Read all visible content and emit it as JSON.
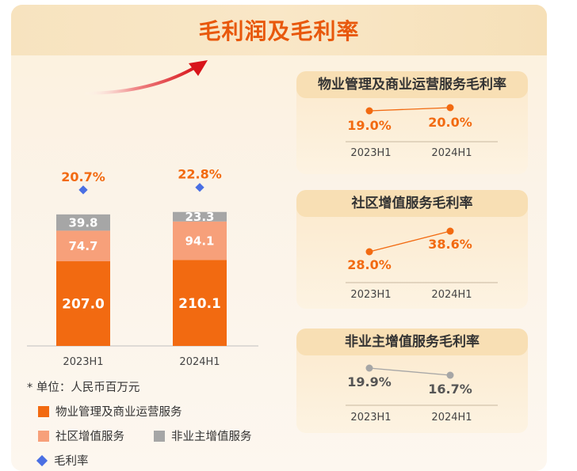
{
  "title": "毛利润及毛利率",
  "chart_data": [
    {
      "type": "bar",
      "stacked": true,
      "categories": [
        "2023H1",
        "2024H1"
      ],
      "series": [
        {
          "name": "物业管理及商业运营服务",
          "values": [
            207.0,
            210.1
          ],
          "color": "#f26a11"
        },
        {
          "name": "社区增值服务",
          "values": [
            74.7,
            94.1
          ],
          "color": "#f7a07a"
        },
        {
          "name": "非业主增值服务",
          "values": [
            39.8,
            23.3
          ],
          "color": "#a6a6a6"
        }
      ],
      "value_labels": [
        [
          "207.0",
          "210.1"
        ],
        [
          "74.7",
          "94.1"
        ],
        [
          "39.8",
          "23.3"
        ]
      ],
      "line": {
        "name": "毛利率",
        "values": [
          20.7,
          22.8
        ],
        "labels": [
          "20.7%",
          "22.8%"
        ],
        "color": "#4a6fe3"
      },
      "unit": "* 单位：人民币百万元"
    },
    {
      "type": "line",
      "title": "物业管理及商业运营服务毛利率",
      "categories": [
        "2023H1",
        "2024H1"
      ],
      "values": [
        19.0,
        20.0
      ],
      "labels": [
        "19.0%",
        "20.0%"
      ],
      "color": "#f26a11"
    },
    {
      "type": "line",
      "title": "社区增值服务毛利率",
      "categories": [
        "2023H1",
        "2024H1"
      ],
      "values": [
        28.0,
        38.6
      ],
      "labels": [
        "28.0%",
        "38.6%"
      ],
      "color": "#f26a11"
    },
    {
      "type": "line",
      "title": "非业主增值服务毛利率",
      "categories": [
        "2023H1",
        "2024H1"
      ],
      "values": [
        19.9,
        16.7
      ],
      "labels": [
        "19.9%",
        "16.7%"
      ],
      "color": "#a6a6a6"
    }
  ]
}
